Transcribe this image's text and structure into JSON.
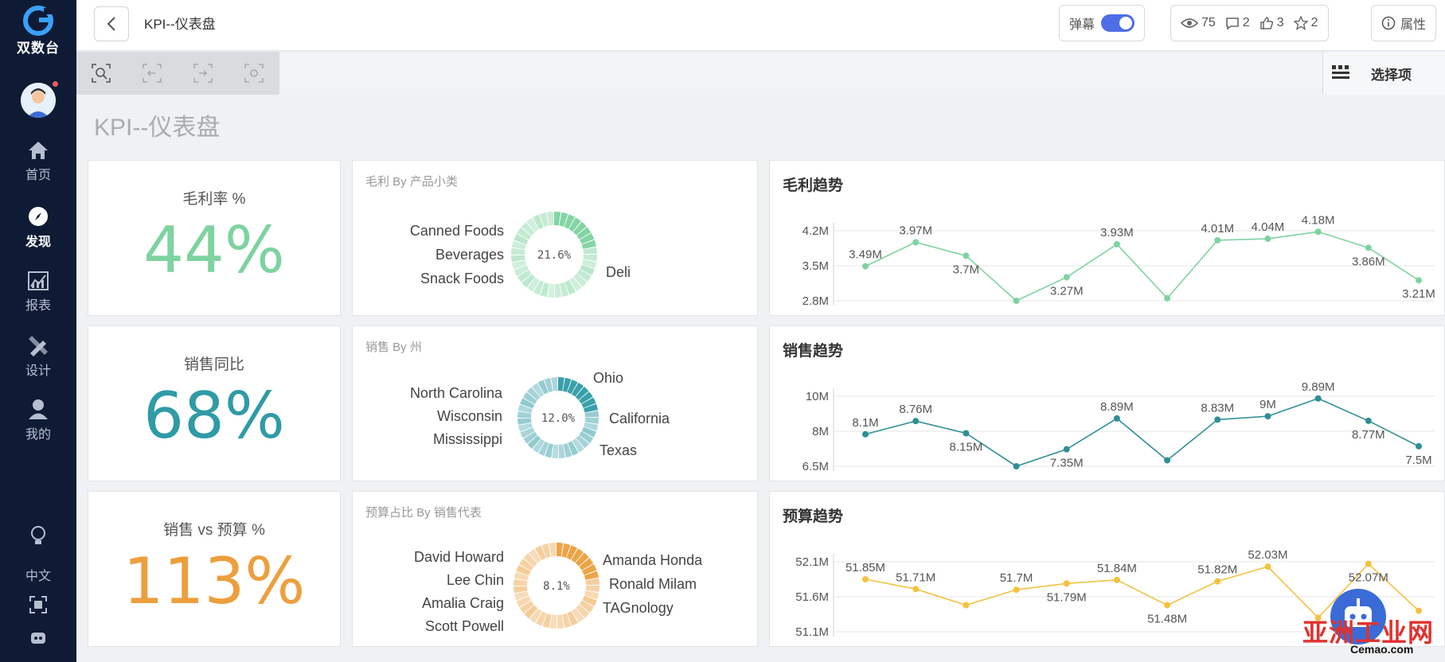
{
  "app": {
    "logo_text": "双数台",
    "nav": [
      {
        "label": "首页",
        "icon": "home-icon"
      },
      {
        "label": "发现",
        "icon": "compass-icon",
        "active": true
      },
      {
        "label": "报表",
        "icon": "chart-icon"
      },
      {
        "label": "设计",
        "icon": "design-icon"
      },
      {
        "label": "我的",
        "icon": "user-icon"
      }
    ],
    "bottom_nav": {
      "language": "中文"
    }
  },
  "topbar": {
    "title": "KPI--仪表盘",
    "danmu_label": "弹幕",
    "views": "75",
    "comments": "2",
    "likes": "3",
    "stars": "2",
    "properties_label": "属性"
  },
  "toolbar": {
    "selection_label": "选择项"
  },
  "sheet": {
    "title": "KPI--仪表盘"
  },
  "kpis": [
    {
      "label": "毛利率 %",
      "value": "44%",
      "color": "#7ed3a0"
    },
    {
      "label": "销售同比",
      "value": "68%",
      "color": "#2f9ba6"
    },
    {
      "label": "销售 vs 预算 %",
      "value": "113%",
      "color": "#ec9f3d"
    }
  ],
  "donuts": [
    {
      "title": "毛利 By 产品小类",
      "center": "21.6%",
      "left_labels": [
        "Canned Foods",
        "Beverages",
        "Snack Foods"
      ],
      "right_labels": [
        "Deli"
      ],
      "color": "#7ed3a0"
    },
    {
      "title": "销售 By 州",
      "center": "12.0%",
      "left_labels": [
        "North Carolina",
        "Wisconsin",
        "Mississippi"
      ],
      "right_labels": [
        "Ohio",
        "California",
        "Texas"
      ],
      "color": "#2f9ba6"
    },
    {
      "title": "预算占比 By 销售代表",
      "center": "8.1%",
      "left_labels": [
        "David Howard",
        "Lee Chin",
        "Amalia Craig",
        "Scott Powell"
      ],
      "right_labels": [
        "Amanda Honda",
        "Ronald Milam",
        "TAGnology"
      ],
      "color": "#ec9f3d"
    }
  ],
  "chart_data": [
    {
      "type": "line",
      "title": "毛利趋势",
      "color": "#7ed3a0",
      "yticks": [
        "4.2M",
        "3.5M",
        "2.8M"
      ],
      "ylim": [
        2.8,
        4.2
      ],
      "values": [
        3.49,
        3.97,
        3.7,
        2.8,
        3.27,
        3.93,
        2.85,
        4.01,
        4.04,
        4.18,
        3.86,
        3.21
      ],
      "labels": [
        "3.49M",
        "3.97M",
        "3.7M",
        "",
        "3.27M",
        "3.93M",
        "",
        "4.01M",
        "4.04M",
        "4.18M",
        "3.86M",
        "3.21M"
      ]
    },
    {
      "type": "line",
      "title": "销售趋势",
      "color": "#2f8f95",
      "yticks": [
        "10M",
        "8M",
        "6.5M"
      ],
      "ylim": [
        6.5,
        10
      ],
      "values": [
        8.1,
        8.76,
        8.15,
        6.5,
        7.35,
        8.89,
        6.8,
        8.83,
        9,
        9.89,
        8.77,
        7.5
      ],
      "labels": [
        "8.1M",
        "8.76M",
        "8.15M",
        "",
        "7.35M",
        "8.89M",
        "",
        "8.83M",
        "9M",
        "9.89M",
        "8.77M",
        "7.5M"
      ]
    },
    {
      "type": "line",
      "title": "预算趋势",
      "color": "#f2c240",
      "yticks": [
        "52.1M",
        "51.6M",
        "51.1M"
      ],
      "ylim": [
        51.1,
        52.1
      ],
      "values": [
        51.85,
        51.71,
        51.48,
        51.7,
        51.79,
        51.84,
        51.48,
        51.82,
        52.03,
        51.3,
        52.07,
        51.4
      ],
      "labels": [
        "51.85M",
        "51.71M",
        "",
        "51.7M",
        "51.79M",
        "51.84M",
        "51.48M",
        "51.82M",
        "52.03M",
        "",
        "52.07M",
        ""
      ]
    }
  ],
  "watermark": {
    "text": "亚洲工业网",
    "url": "Cemao.com"
  }
}
